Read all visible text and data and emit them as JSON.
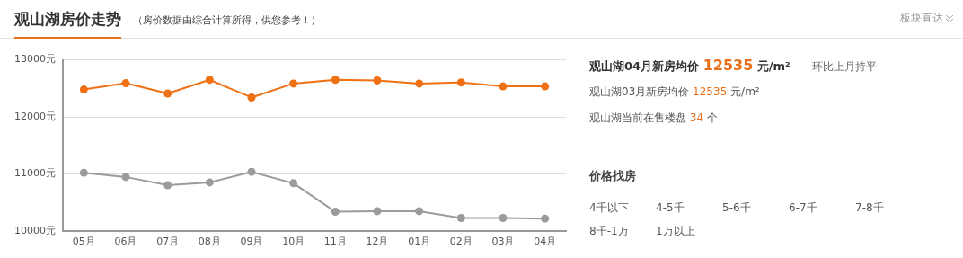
{
  "chart_data": [
    {
      "type": "line",
      "title": "观山湖房价走势",
      "subtitle": "（房价数据由综合计算所得，供您参考！）",
      "annotations": [
        "板块直达"
      ],
      "categories": [
        "05月",
        "06月",
        "07月",
        "08月",
        "09月",
        "10月",
        "11月",
        "12月",
        "01月",
        "02月",
        "03月",
        "04月"
      ],
      "series": [
        {
          "color": "#f07014",
          "values": [
            12480,
            12590,
            12410,
            12650,
            12340,
            12585,
            12650,
            12640,
            12585,
            12605,
            12535,
            12535
          ]
        },
        {
          "color": "#9b9b9b",
          "values": [
            11020,
            10945,
            10800,
            10850,
            11035,
            10835,
            10335,
            10345,
            10345,
            10225,
            10225,
            10215
          ]
        }
      ],
      "ylim": [
        10000,
        13000
      ],
      "yticks": [
        {
          "value": 10000,
          "label": "10000元"
        },
        {
          "value": 11000,
          "label": "11000元"
        },
        {
          "value": 12000,
          "label": "12000元"
        },
        {
          "value": 13000,
          "label": "13000元"
        }
      ],
      "grid": "y",
      "marker": "circle",
      "line_style": "solid",
      "legend": false
    },
    {
      "type": "other",
      "title": "价格找房",
      "annotations": [
        "观山湖04月新房均价 12535 元/m²",
        "环比上月持平",
        "观山湖03月新房均价 12535 元/m²",
        "观山湖当前在售楼盘 34 个"
      ],
      "categories": [
        "4千以下",
        "4-5千",
        "5-6千",
        "6-7千",
        "7-8千",
        "8千-1万",
        "1万以上"
      ]
    }
  ]
}
